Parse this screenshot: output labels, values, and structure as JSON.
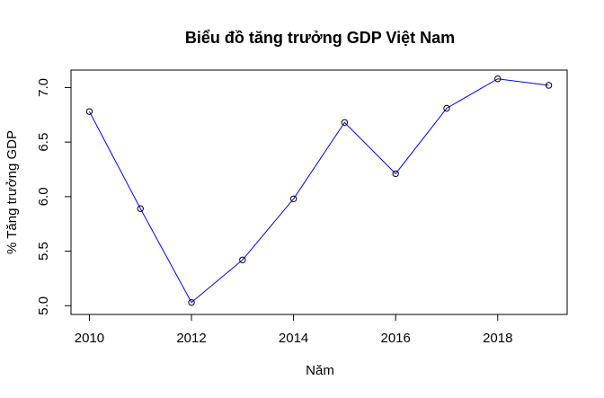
{
  "chart_data": {
    "type": "line",
    "title": "Biểu đồ tăng trưởng GDP Việt Nam",
    "xlabel": "Năm",
    "ylabel": "% Tăng trưởng GDP",
    "x": [
      2010,
      2011,
      2012,
      2013,
      2014,
      2015,
      2016,
      2017,
      2018,
      2019
    ],
    "series": [
      {
        "values": [
          6.78,
          5.89,
          5.03,
          5.42,
          5.98,
          6.68,
          6.21,
          6.81,
          7.08,
          7.02
        ]
      }
    ],
    "xlim": [
      2009.64,
      2019.36
    ],
    "ylim": [
      4.92,
      7.16
    ],
    "xticks": [
      "2010",
      "2012",
      "2014",
      "2016",
      "2018"
    ],
    "yticks": [
      "5.0",
      "5.5",
      "6.0",
      "6.5",
      "7.0"
    ],
    "line_color": "#0000ff",
    "marker_color": "#000000",
    "grid": false,
    "legend": "none"
  }
}
